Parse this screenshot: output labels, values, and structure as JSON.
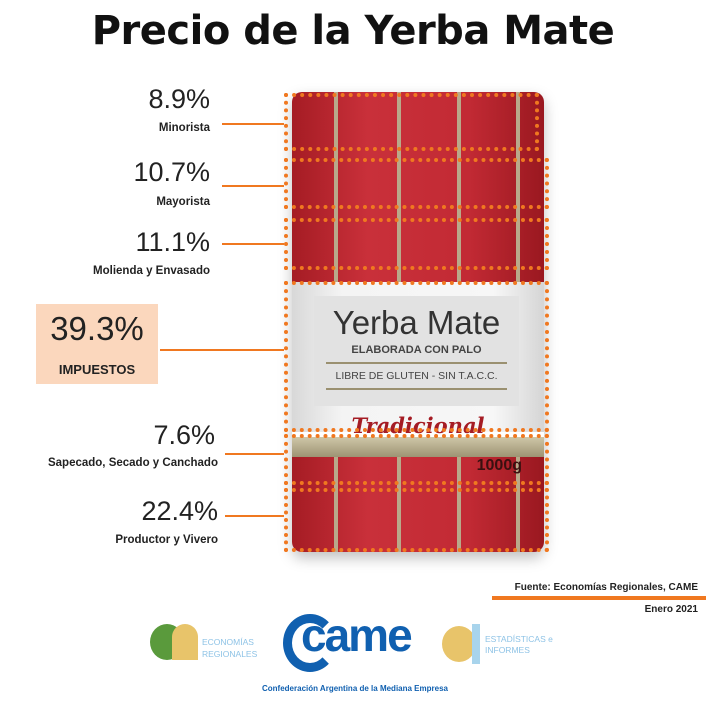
{
  "title": "Precio de la Yerba Mate",
  "chart_data": {
    "type": "stacked-bar",
    "title": "Precio de la Yerba Mate",
    "unit": "%",
    "categories": [
      "Minorista",
      "Mayorista",
      "Molienda y Envasado",
      "IMPUESTOS",
      "Sapecado, Secado y Canchado",
      "Productor y Vivero"
    ],
    "values": [
      8.9,
      10.7,
      11.1,
      39.3,
      7.6,
      22.4
    ],
    "labels": [
      "8.9%",
      "10.7%",
      "11.1%",
      "39.3%",
      "7.6%",
      "22.4%"
    ],
    "highlight": "IMPUESTOS",
    "highlight_color": "#fbd7bd",
    "accent_color": "#f07820"
  },
  "package": {
    "brand": "Yerba Mate",
    "line1": "ELABORADA CON PALO",
    "line2": "LIBRE DE GLUTEN - SIN T.A.C.C.",
    "variety": "Tradicional",
    "weight": "1000g"
  },
  "source": "Fuente: Economías Regionales, CAME",
  "date": "Enero 2021",
  "logos": {
    "er": "ECONOMÍAS REGIONALES",
    "came": "came",
    "came_full": "Confederación Argentina de la Mediana Empresa",
    "ei": "ESTADÍSTICAS e INFORMES"
  }
}
